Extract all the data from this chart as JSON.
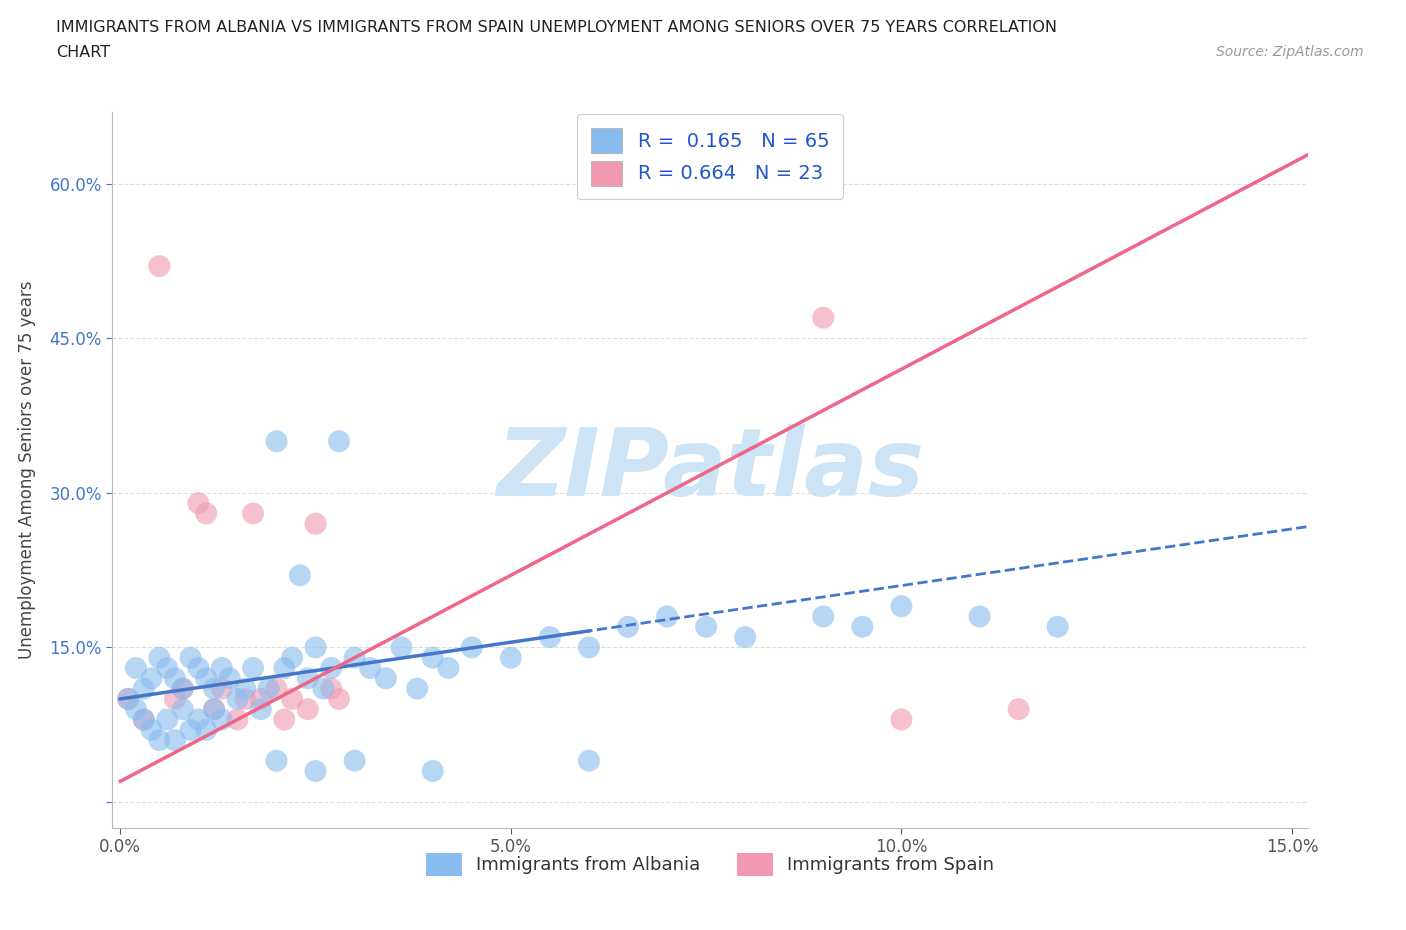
{
  "title_line1": "IMMIGRANTS FROM ALBANIA VS IMMIGRANTS FROM SPAIN UNEMPLOYMENT AMONG SENIORS OVER 75 YEARS CORRELATION",
  "title_line2": "CHART",
  "source": "Source: ZipAtlas.com",
  "ylabel": "Unemployment Among Seniors over 75 years",
  "xlim": [
    -0.001,
    0.152
  ],
  "ylim": [
    -0.025,
    0.67
  ],
  "xticks": [
    0.0,
    0.05,
    0.1,
    0.15
  ],
  "xtick_labels": [
    "0.0%",
    "5.0%",
    "10.0%",
    "15.0%"
  ],
  "yticks": [
    0.0,
    0.15,
    0.3,
    0.45,
    0.6
  ],
  "ytick_labels": [
    "",
    "15.0%",
    "30.0%",
    "45.0%",
    "60.0%"
  ],
  "albania_R": "0.165",
  "albania_N": "65",
  "spain_R": "0.664",
  "spain_N": "23",
  "albania_dot_color": "#88bbee",
  "spain_dot_color": "#f099b0",
  "albania_line_color": "#4477cc",
  "spain_line_color": "#ee6688",
  "background_color": "#ffffff",
  "grid_color": "#dddddd",
  "watermark_text": "ZIPatlas",
  "watermark_color": "#cce4f5",
  "legend_label_albania": "Immigrants from Albania",
  "legend_label_spain": "Immigrants from Spain",
  "albania_x": [
    0.001,
    0.002,
    0.002,
    0.003,
    0.003,
    0.004,
    0.004,
    0.005,
    0.005,
    0.006,
    0.006,
    0.007,
    0.007,
    0.008,
    0.008,
    0.009,
    0.009,
    0.01,
    0.01,
    0.011,
    0.011,
    0.012,
    0.012,
    0.013,
    0.013,
    0.014,
    0.015,
    0.016,
    0.017,
    0.018,
    0.019,
    0.02,
    0.021,
    0.022,
    0.023,
    0.024,
    0.025,
    0.026,
    0.027,
    0.028,
    0.03,
    0.032,
    0.034,
    0.036,
    0.038,
    0.04,
    0.042,
    0.045,
    0.05,
    0.055,
    0.06,
    0.065,
    0.07,
    0.075,
    0.08,
    0.09,
    0.095,
    0.1,
    0.11,
    0.12,
    0.02,
    0.025,
    0.03,
    0.04,
    0.06
  ],
  "albania_y": [
    0.1,
    0.09,
    0.13,
    0.11,
    0.08,
    0.12,
    0.07,
    0.14,
    0.06,
    0.13,
    0.08,
    0.12,
    0.06,
    0.11,
    0.09,
    0.14,
    0.07,
    0.13,
    0.08,
    0.12,
    0.07,
    0.11,
    0.09,
    0.13,
    0.08,
    0.12,
    0.1,
    0.11,
    0.13,
    0.09,
    0.11,
    0.35,
    0.13,
    0.14,
    0.22,
    0.12,
    0.15,
    0.11,
    0.13,
    0.35,
    0.14,
    0.13,
    0.12,
    0.15,
    0.11,
    0.14,
    0.13,
    0.15,
    0.14,
    0.16,
    0.15,
    0.17,
    0.18,
    0.17,
    0.16,
    0.18,
    0.17,
    0.19,
    0.18,
    0.17,
    0.04,
    0.03,
    0.04,
    0.03,
    0.04
  ],
  "spain_x": [
    0.001,
    0.003,
    0.005,
    0.007,
    0.008,
    0.01,
    0.011,
    0.012,
    0.013,
    0.015,
    0.016,
    0.017,
    0.018,
    0.02,
    0.021,
    0.022,
    0.024,
    0.025,
    0.027,
    0.028,
    0.09,
    0.1,
    0.115
  ],
  "spain_y": [
    0.1,
    0.08,
    0.52,
    0.1,
    0.11,
    0.29,
    0.28,
    0.09,
    0.11,
    0.08,
    0.1,
    0.28,
    0.1,
    0.11,
    0.08,
    0.1,
    0.09,
    0.27,
    0.11,
    0.1,
    0.47,
    0.08,
    0.09
  ],
  "spain_line_slope": 4.0,
  "spain_line_intercept": 0.02,
  "albania_line_slope": 1.1,
  "albania_line_intercept": 0.1
}
